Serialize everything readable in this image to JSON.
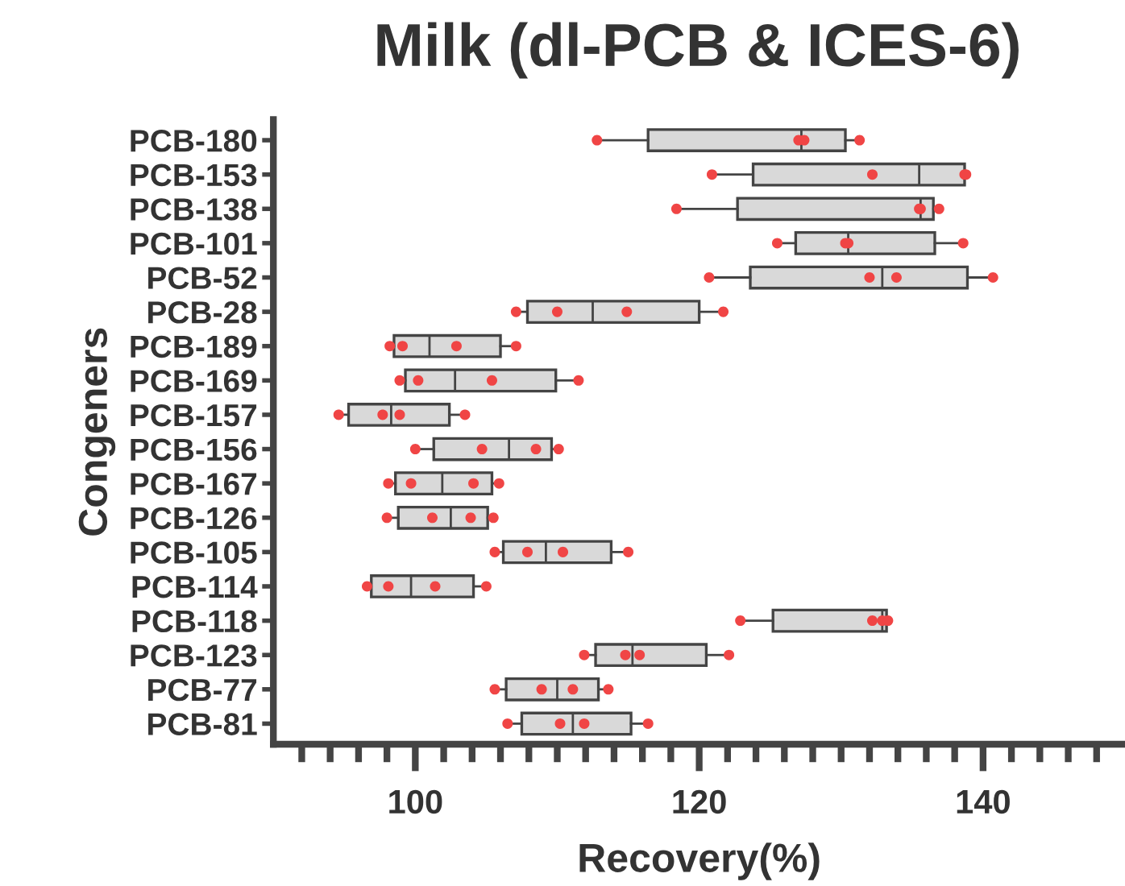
{
  "chart_data": {
    "type": "box",
    "orientation": "horizontal",
    "title": "Milk (dl-PCB & ICES-6)",
    "xlabel": "Recovery(%)",
    "ylabel": "Congeners",
    "categories": [
      "PCB-180",
      "PCB-153",
      "PCB-138",
      "PCB-101",
      "PCB-52",
      "PCB-28",
      "PCB-189",
      "PCB-169",
      "PCB-157",
      "PCB-156",
      "PCB-167",
      "PCB-126",
      "PCB-105",
      "PCB-114",
      "PCB-118",
      "PCB-123",
      "PCB-77",
      "PCB-81"
    ],
    "color": "#d9d9d9",
    "boxes": [
      {
        "low": 112.8,
        "q1": 116.4,
        "median": 127.2,
        "q3": 130.3,
        "high": 131.3
      },
      {
        "low": 120.9,
        "q1": 123.8,
        "median": 135.5,
        "q3": 138.7,
        "high": 138.8
      },
      {
        "low": 118.4,
        "q1": 122.7,
        "median": 135.6,
        "q3": 136.5,
        "high": 136.9
      },
      {
        "low": 125.5,
        "q1": 126.8,
        "median": 130.5,
        "q3": 136.6,
        "high": 138.6
      },
      {
        "low": 120.7,
        "q1": 123.6,
        "median": 132.9,
        "q3": 138.9,
        "high": 140.7
      },
      {
        "low": 107.1,
        "q1": 107.9,
        "median": 112.5,
        "q3": 120.0,
        "high": 121.7
      },
      {
        "low": 98.2,
        "q1": 98.5,
        "median": 101.0,
        "q3": 106.0,
        "high": 107.1
      },
      {
        "low": 98.9,
        "q1": 99.3,
        "median": 102.8,
        "q3": 109.9,
        "high": 111.5
      },
      {
        "low": 94.6,
        "q1": 95.3,
        "median": 98.3,
        "q3": 102.4,
        "high": 103.5
      },
      {
        "low": 100.0,
        "q1": 101.3,
        "median": 106.6,
        "q3": 109.6,
        "high": 110.1
      },
      {
        "low": 98.1,
        "q1": 98.6,
        "median": 101.9,
        "q3": 105.4,
        "high": 105.9
      },
      {
        "low": 98.0,
        "q1": 98.8,
        "median": 102.5,
        "q3": 105.1,
        "high": 105.5
      },
      {
        "low": 105.6,
        "q1": 106.2,
        "median": 109.2,
        "q3": 113.8,
        "high": 115.0
      },
      {
        "low": 96.6,
        "q1": 96.9,
        "median": 99.7,
        "q3": 104.1,
        "high": 105.0
      },
      {
        "low": 122.9,
        "q1": 125.2,
        "median": 132.9,
        "q3": 133.2,
        "high": 133.3
      },
      {
        "low": 111.9,
        "q1": 112.7,
        "median": 115.3,
        "q3": 120.5,
        "high": 122.1
      },
      {
        "low": 105.6,
        "q1": 106.4,
        "median": 110.0,
        "q3": 112.9,
        "high": 113.6
      },
      {
        "low": 106.5,
        "q1": 107.5,
        "median": 111.1,
        "q3": 115.2,
        "high": 116.4
      }
    ],
    "series": [
      {
        "type": "scatter",
        "color": "#f04545",
        "x": [
          "PCB-180",
          "PCB-180",
          "PCB-180",
          "PCB-180",
          "PCB-153",
          "PCB-153",
          "PCB-153",
          "PCB-153",
          "PCB-138",
          "PCB-138",
          "PCB-138",
          "PCB-138",
          "PCB-101",
          "PCB-101",
          "PCB-101",
          "PCB-101",
          "PCB-52",
          "PCB-52",
          "PCB-52",
          "PCB-52",
          "PCB-28",
          "PCB-28",
          "PCB-28",
          "PCB-28",
          "PCB-189",
          "PCB-189",
          "PCB-189",
          "PCB-189",
          "PCB-169",
          "PCB-169",
          "PCB-169",
          "PCB-169",
          "PCB-157",
          "PCB-157",
          "PCB-157",
          "PCB-157",
          "PCB-156",
          "PCB-156",
          "PCB-156",
          "PCB-156",
          "PCB-167",
          "PCB-167",
          "PCB-167",
          "PCB-167",
          "PCB-126",
          "PCB-126",
          "PCB-126",
          "PCB-126",
          "PCB-105",
          "PCB-105",
          "PCB-105",
          "PCB-105",
          "PCB-114",
          "PCB-114",
          "PCB-114",
          "PCB-114",
          "PCB-118",
          "PCB-118",
          "PCB-118",
          "PCB-118",
          "PCB-123",
          "PCB-123",
          "PCB-123",
          "PCB-123",
          "PCB-77",
          "PCB-77",
          "PCB-77",
          "PCB-77",
          "PCB-81",
          "PCB-81",
          "PCB-81",
          "PCB-81"
        ],
        "values": [
          112.8,
          127.0,
          127.4,
          131.3,
          120.9,
          132.2,
          138.7,
          138.8,
          118.4,
          135.5,
          135.6,
          136.9,
          125.5,
          130.3,
          130.5,
          138.6,
          120.7,
          132.0,
          133.9,
          140.7,
          107.1,
          110.0,
          114.9,
          121.7,
          98.2,
          99.1,
          102.9,
          107.1,
          98.9,
          100.2,
          105.4,
          111.5,
          94.6,
          97.7,
          98.9,
          103.5,
          100.0,
          104.7,
          108.5,
          110.1,
          98.1,
          99.7,
          104.1,
          105.9,
          98.0,
          101.2,
          103.9,
          105.5,
          105.6,
          107.9,
          110.4,
          115.0,
          96.6,
          98.1,
          101.4,
          105.0,
          122.9,
          132.2,
          132.9,
          133.3,
          111.9,
          114.8,
          115.8,
          122.1,
          105.6,
          108.9,
          111.1,
          113.6,
          106.5,
          110.2,
          111.9,
          116.4
        ]
      }
    ],
    "xlim": [
      90,
      150
    ],
    "xticks": [
      {
        "value": 92,
        "label": null
      },
      {
        "value": 94,
        "label": null
      },
      {
        "value": 96,
        "label": null
      },
      {
        "value": 98,
        "label": null
      },
      100,
      {
        "value": 102,
        "label": null
      },
      {
        "value": 104,
        "label": null
      },
      {
        "value": 106,
        "label": null
      },
      {
        "value": 108,
        "label": null
      },
      {
        "value": 110,
        "label": null
      },
      {
        "value": 112,
        "label": null
      },
      {
        "value": 114,
        "label": null
      },
      {
        "value": 116,
        "label": null
      },
      {
        "value": 118,
        "label": null
      },
      120,
      {
        "value": 122,
        "label": null
      },
      {
        "value": 124,
        "label": null
      },
      {
        "value": 126,
        "label": null
      },
      {
        "value": 128,
        "label": null
      },
      {
        "value": 130,
        "label": null
      },
      {
        "value": 132,
        "label": null
      },
      {
        "value": 134,
        "label": null
      },
      {
        "value": 136,
        "label": null
      },
      {
        "value": 138,
        "label": null
      },
      140,
      {
        "value": 142,
        "label": null
      },
      {
        "value": 144,
        "label": null
      },
      {
        "value": 146,
        "label": null
      },
      {
        "value": 148,
        "label": null
      }
    ],
    "grid": false,
    "legend": false
  }
}
